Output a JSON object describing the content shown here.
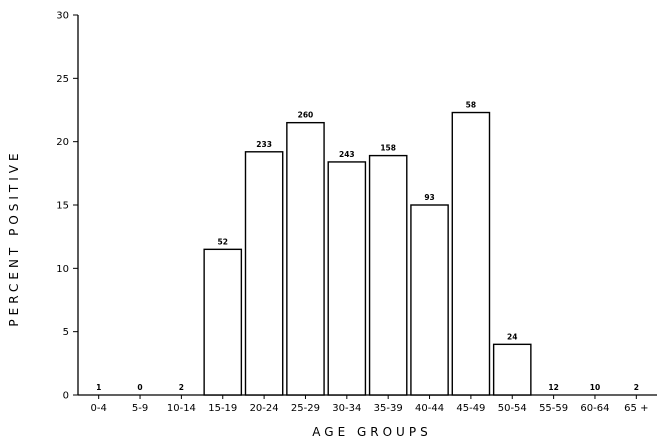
{
  "chart_data": {
    "type": "bar",
    "title": "",
    "xlabel": "AGE GROUPS",
    "ylabel": "PERCENT POSITIVE",
    "ylim": [
      0,
      30
    ],
    "yticks": [
      0,
      5,
      10,
      15,
      20,
      25,
      30
    ],
    "grid": false,
    "categories": [
      "0-4",
      "5-9",
      "10-14",
      "15-19",
      "20-24",
      "25-29",
      "30-34",
      "35-39",
      "40-44",
      "45-49",
      "50-54",
      "55-59",
      "60-64",
      "65 +"
    ],
    "values": [
      0,
      0,
      0,
      11.5,
      19.2,
      21.5,
      18.4,
      18.9,
      15.0,
      22.3,
      4.0,
      0,
      0,
      0
    ],
    "data_labels": [
      "1",
      "0",
      "2",
      "52",
      "233",
      "260",
      "243",
      "158",
      "93",
      "58",
      "24",
      "12",
      "10",
      "2"
    ]
  }
}
